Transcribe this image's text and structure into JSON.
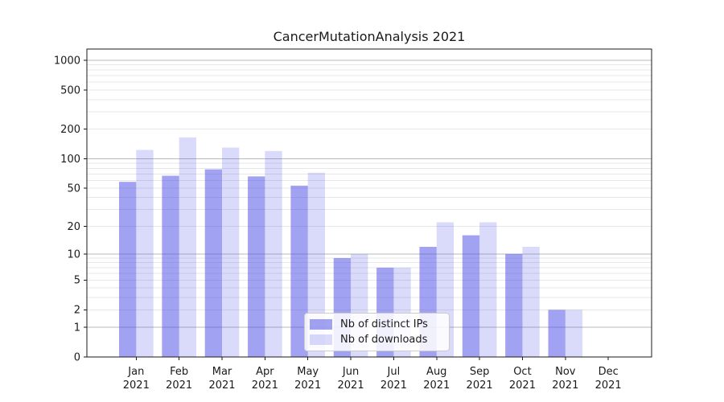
{
  "chart_data": {
    "type": "bar",
    "title": "CancerMutationAnalysis 2021",
    "scale": "log1p (symlog-like): y position proportional to log10(value+1)",
    "year": "2021",
    "categories": [
      "Jan",
      "Feb",
      "Mar",
      "Apr",
      "May",
      "Jun",
      "Jul",
      "Aug",
      "Sep",
      "Oct",
      "Nov",
      "Dec"
    ],
    "series": [
      {
        "name": "Nb of distinct IPs",
        "color": "rgba(70,70,230,0.5)",
        "values": [
          58,
          67,
          78,
          66,
          53,
          9,
          7,
          12,
          16,
          10,
          2,
          0
        ]
      },
      {
        "name": "Nb of downloads",
        "color": "rgba(70,70,230,0.2)",
        "values": [
          123,
          165,
          130,
          120,
          72,
          10,
          7,
          22,
          22,
          12,
          2,
          0
        ]
      }
    ],
    "yticks": [
      0,
      1,
      2,
      5,
      10,
      20,
      50,
      100,
      200,
      500,
      1000
    ],
    "ylim": [
      0,
      1300
    ],
    "xlabel": "",
    "ylabel": "",
    "grid": "major and minor horizontal gridlines",
    "legend_position": "lower center, inside plot"
  },
  "colors": {
    "background": "#ffffff",
    "bar_distinct_ips_rendered": "#a3a3f3",
    "bar_downloads_rendered": "#dadaf9",
    "major_grid": "#bababa",
    "minor_grid": "#e7e7e7",
    "spine": "#1a1a1a",
    "text": "#1a1a1a",
    "legend_border": "#cccccc",
    "legend_background": "rgba(255,255,255,0.85)"
  }
}
